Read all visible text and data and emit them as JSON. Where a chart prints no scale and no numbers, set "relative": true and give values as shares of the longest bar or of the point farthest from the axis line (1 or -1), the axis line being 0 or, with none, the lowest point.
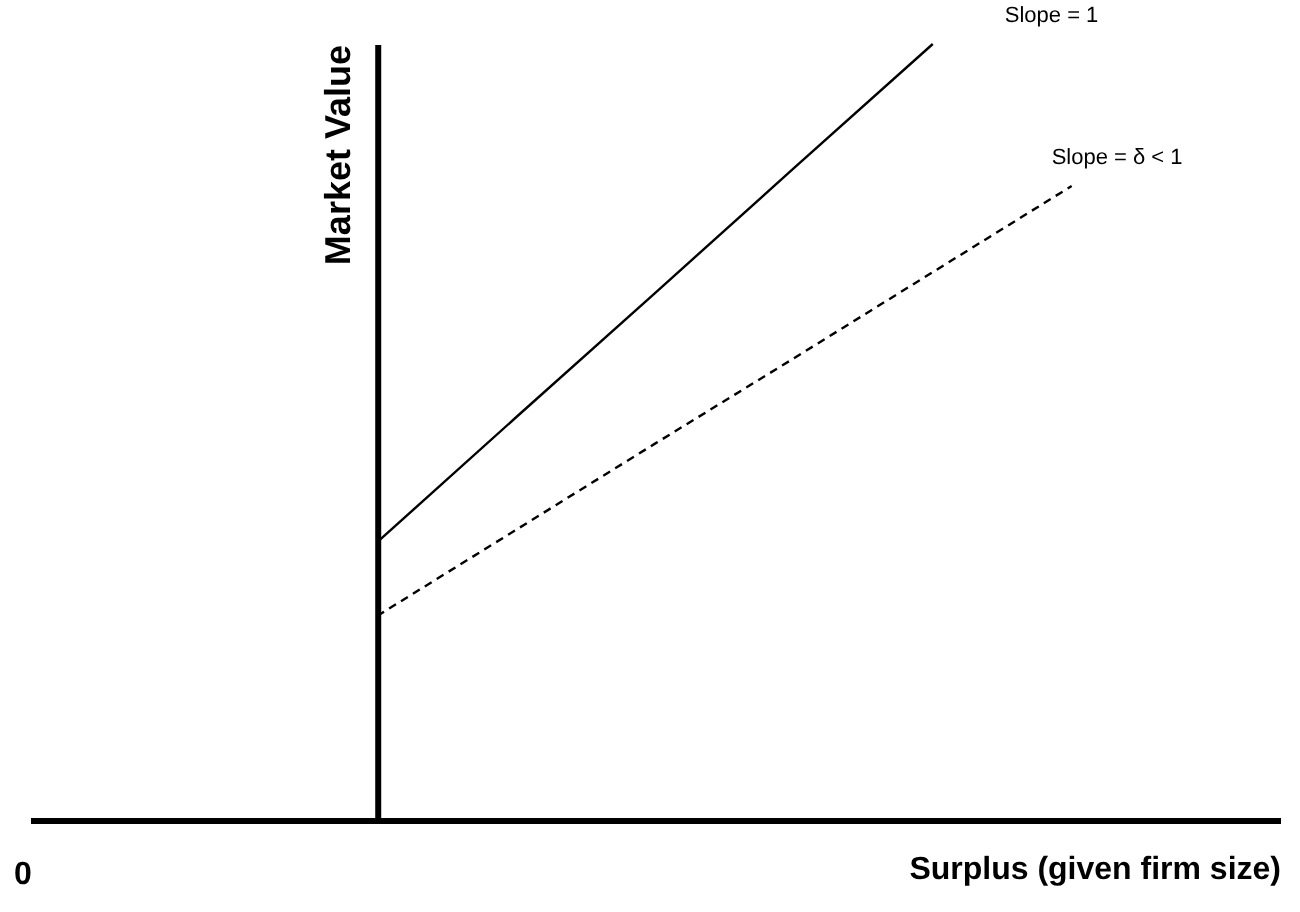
{
  "chart_data": {
    "type": "line",
    "relative": true,
    "xlabel": "Surplus (given firm size)",
    "ylabel": "Market Value",
    "categories": [
      null,
      null,
      null,
      null,
      null,
      null,
      null,
      null,
      null
    ],
    "series": [
      {
        "color": "#000000",
        "line_style": "solid",
        "values": [
          null,
          null,
          0.358,
          0.519,
          0.679,
          0.84,
          1,
          null,
          null
        ]
      },
      {
        "color": "#000000",
        "line_style": "dashed",
        "values": [
          null,
          null,
          0.263,
          0.374,
          0.485,
          0.595,
          0.706,
          0.817,
          null
        ]
      }
    ],
    "annotations": [
      "Slope = 1",
      "Slope = δ < 1",
      "0"
    ]
  }
}
